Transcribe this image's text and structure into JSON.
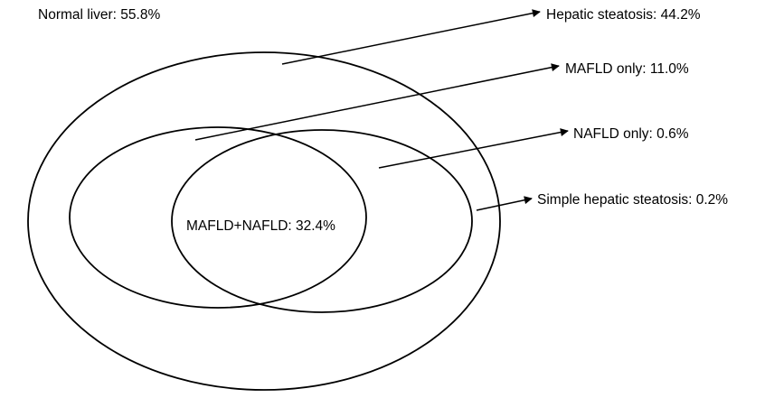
{
  "labels": {
    "normal_liver": "Normal liver: 55.8%",
    "hepatic_steatosis": "Hepatic steatosis: 44.2%",
    "mafld_only": "MAFLD only: 11.0%",
    "nafld_only": "NAFLD only: 0.6%",
    "simple_hepatic_steatosis": "Simple hepatic steatosis: 0.2%",
    "mafld_nafld": "MAFLD+NAFLD: 32.4%"
  },
  "colors": {
    "stroke": "#000000",
    "background": "#ffffff"
  }
}
